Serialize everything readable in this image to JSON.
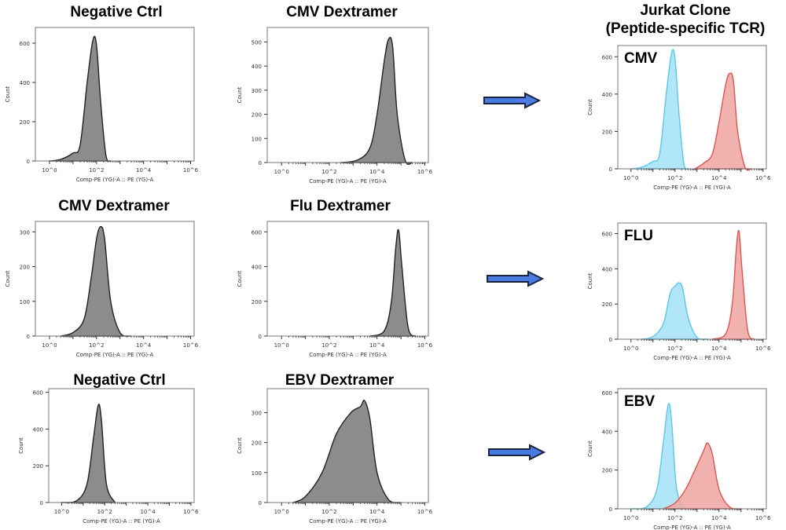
{
  "axis": {
    "xlabel": "Comp-PE (YG)-A :: PE (YG)-A",
    "ylabel": "Count",
    "xscale": "log",
    "xticks": [
      "10^0",
      "10^2",
      "10^4",
      "10^6"
    ]
  },
  "colors": {
    "gray": "#8c8c8c",
    "cyan": "#a8e2f7",
    "cyan_line": "#5cc6ee",
    "red": "#f0a9a6",
    "red_line": "#e2534f",
    "arrow": "#4a7be0"
  },
  "header_title": "Jurkat Clone\n(Peptide-specific TCR)",
  "chart_data": [
    {
      "type": "area",
      "title": "Negative Ctrl",
      "ylim": [
        0,
        680
      ],
      "yticks": [
        0,
        200,
        400,
        600
      ],
      "series": [
        {
          "color": "gray",
          "points": [
            [
              1,
              0
            ],
            [
              3,
              8
            ],
            [
              10,
              40
            ],
            [
              20,
              80
            ],
            [
              40,
              400
            ],
            [
              70,
              615
            ],
            [
              100,
              590
            ],
            [
              150,
              300
            ],
            [
              250,
              30
            ],
            [
              400,
              0
            ]
          ]
        }
      ]
    },
    {
      "type": "area",
      "title": "CMV Dextramer",
      "ylim": [
        0,
        560
      ],
      "yticks": [
        0,
        100,
        200,
        300,
        400,
        500
      ],
      "series": [
        {
          "color": "gray",
          "points": [
            [
              300,
              0
            ],
            [
              1500,
              10
            ],
            [
              5000,
              60
            ],
            [
              10000,
              200
            ],
            [
              20000,
              420
            ],
            [
              30000,
              510
            ],
            [
              45000,
              480
            ],
            [
              70000,
              200
            ],
            [
              150000,
              10
            ],
            [
              300000,
              0
            ]
          ]
        }
      ]
    },
    {
      "type": "area",
      "title": "",
      "label": "CMV",
      "ylim": [
        0,
        660
      ],
      "yticks": [
        0,
        200,
        400,
        600
      ],
      "series": [
        {
          "color": "cyan",
          "points": [
            [
              1,
              0
            ],
            [
              3,
              8
            ],
            [
              10,
              40
            ],
            [
              20,
              80
            ],
            [
              40,
              400
            ],
            [
              70,
              620
            ],
            [
              100,
              590
            ],
            [
              150,
              300
            ],
            [
              250,
              30
            ],
            [
              400,
              0
            ]
          ]
        },
        {
          "color": "red",
          "points": [
            [
              800,
              0
            ],
            [
              2000,
              30
            ],
            [
              5000,
              80
            ],
            [
              10000,
              250
            ],
            [
              20000,
              450
            ],
            [
              30000,
              510
            ],
            [
              45000,
              470
            ],
            [
              70000,
              200
            ],
            [
              150000,
              10
            ],
            [
              300000,
              0
            ]
          ]
        }
      ]
    },
    {
      "type": "area",
      "title": "CMV Dextramer",
      "ylim": [
        0,
        330
      ],
      "yticks": [
        0,
        100,
        200,
        300
      ],
      "series": [
        {
          "color": "gray",
          "points": [
            [
              3,
              0
            ],
            [
              10,
              10
            ],
            [
              30,
              50
            ],
            [
              60,
              170
            ],
            [
              100,
              280
            ],
            [
              150,
              315
            ],
            [
              220,
              280
            ],
            [
              400,
              100
            ],
            [
              1000,
              10
            ],
            [
              3000,
              0
            ]
          ]
        }
      ]
    },
    {
      "type": "area",
      "title": "Flu Dextramer",
      "ylim": [
        0,
        660
      ],
      "yticks": [
        0,
        200,
        400,
        600
      ],
      "series": [
        {
          "color": "gray",
          "points": [
            [
              5000,
              0
            ],
            [
              20000,
              30
            ],
            [
              40000,
              200
            ],
            [
              60000,
              500
            ],
            [
              80000,
              610
            ],
            [
              110000,
              400
            ],
            [
              200000,
              50
            ],
            [
              400000,
              0
            ]
          ]
        }
      ]
    },
    {
      "type": "area",
      "title": "",
      "label": "FLU",
      "ylim": [
        0,
        660
      ],
      "yticks": [
        0,
        200,
        400,
        600
      ],
      "series": [
        {
          "color": "cyan",
          "points": [
            [
              3,
              0
            ],
            [
              10,
              15
            ],
            [
              30,
              90
            ],
            [
              60,
              260
            ],
            [
              100,
              300
            ],
            [
              150,
              320
            ],
            [
              220,
              290
            ],
            [
              400,
              120
            ],
            [
              1000,
              10
            ],
            [
              3000,
              0
            ]
          ]
        },
        {
          "color": "red",
          "points": [
            [
              5000,
              0
            ],
            [
              20000,
              30
            ],
            [
              40000,
              200
            ],
            [
              60000,
              500
            ],
            [
              80000,
              615
            ],
            [
              110000,
              400
            ],
            [
              200000,
              50
            ],
            [
              400000,
              0
            ]
          ]
        }
      ]
    },
    {
      "type": "area",
      "title": "Negative Ctrl",
      "ylim": [
        0,
        620
      ],
      "yticks": [
        0,
        200,
        400,
        600
      ],
      "series": [
        {
          "color": "gray",
          "points": [
            [
              1,
              0
            ],
            [
              5,
              10
            ],
            [
              15,
              100
            ],
            [
              30,
              350
            ],
            [
              50,
              530
            ],
            [
              70,
              450
            ],
            [
              120,
              100
            ],
            [
              300,
              0
            ]
          ]
        }
      ]
    },
    {
      "type": "area",
      "title": "EBV Dextramer",
      "ylim": [
        0,
        380
      ],
      "yticks": [
        0,
        100,
        200,
        300
      ],
      "series": [
        {
          "color": "gray",
          "points": [
            [
              3,
              0
            ],
            [
              10,
              20
            ],
            [
              50,
              100
            ],
            [
              200,
              230
            ],
            [
              800,
              300
            ],
            [
              2000,
              320
            ],
            [
              3000,
              340
            ],
            [
              5000,
              280
            ],
            [
              10000,
              100
            ],
            [
              30000,
              10
            ],
            [
              100000,
              0
            ]
          ]
        }
      ]
    },
    {
      "type": "area",
      "title": "",
      "label": "EBV",
      "ylim": [
        0,
        620
      ],
      "yticks": [
        0,
        200,
        400,
        600
      ],
      "series": [
        {
          "color": "cyan",
          "points": [
            [
              1,
              0
            ],
            [
              5,
              10
            ],
            [
              15,
              100
            ],
            [
              30,
              350
            ],
            [
              50,
              540
            ],
            [
              70,
              450
            ],
            [
              120,
              100
            ],
            [
              300,
              0
            ]
          ]
        },
        {
          "color": "red",
          "points": [
            [
              30,
              0
            ],
            [
              100,
              30
            ],
            [
              300,
              100
            ],
            [
              800,
              200
            ],
            [
              2000,
              300
            ],
            [
              3000,
              340
            ],
            [
              5000,
              280
            ],
            [
              10000,
              100
            ],
            [
              30000,
              10
            ],
            [
              100000,
              0
            ]
          ]
        }
      ]
    }
  ]
}
